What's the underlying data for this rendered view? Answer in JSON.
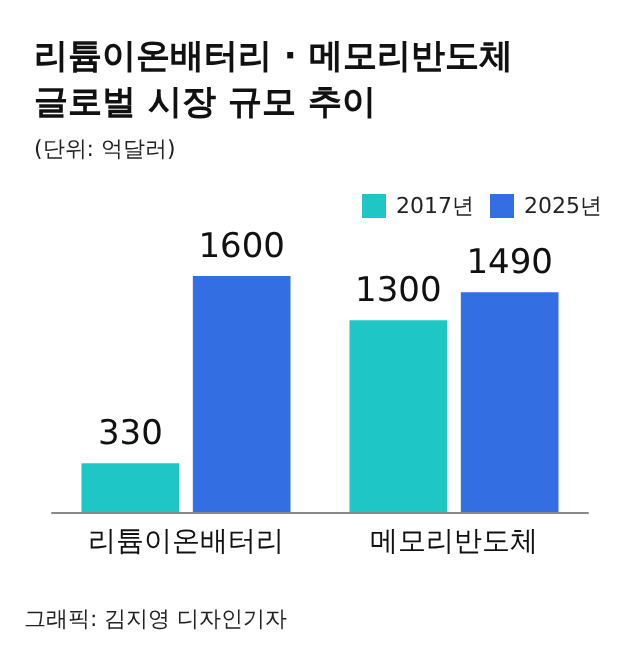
{
  "chart_data": {
    "type": "bar",
    "title": "리튬이온배터리 · 메모리반도체\n글로벌 시장 규모 추이",
    "subtitle": "(단위: 억달러)",
    "categories": [
      "리튬이온배터리",
      "메모리반도체"
    ],
    "series": [
      {
        "name": "2017년",
        "color": "#1fc6c6",
        "values": [
          330,
          1300
        ]
      },
      {
        "name": "2025년",
        "color": "#336fe3",
        "values": [
          1600,
          1490
        ]
      }
    ],
    "data_labels": true,
    "legend": "top right",
    "annotations": [
      "그래픽: 김지영 디자인기자"
    ]
  }
}
